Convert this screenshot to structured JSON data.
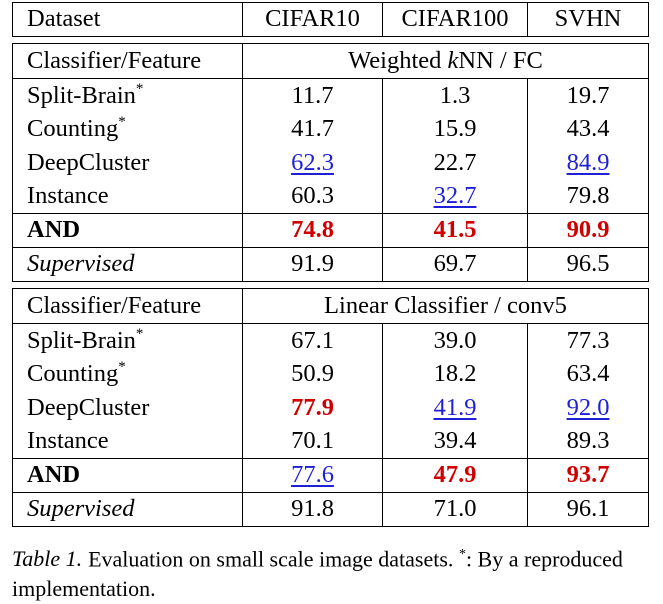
{
  "columns": {
    "dataset": "Dataset",
    "cifar10": "CIFAR10",
    "cifar100": "CIFAR100",
    "svhn": "SVHN"
  },
  "sections": [
    {
      "label": "Classifier/Feature",
      "title_prefix": "Weighted ",
      "title_italic": "k",
      "title_suffix": "NN / FC",
      "rows": [
        {
          "method": "Split-Brain",
          "star": "*",
          "cifar10": "11.7",
          "cifar100": "1.3",
          "svhn": "19.7"
        },
        {
          "method": "Counting",
          "star": "*",
          "cifar10": "41.7",
          "cifar100": "15.9",
          "svhn": "43.4"
        },
        {
          "method": "DeepCluster",
          "cifar10": "62.3",
          "cifar100": "22.7",
          "svhn": "84.9"
        },
        {
          "method": "Instance",
          "cifar10": "60.3",
          "cifar100": "32.7",
          "svhn": "79.8"
        },
        {
          "method": "AND",
          "cifar10": "74.8",
          "cifar100": "41.5",
          "svhn": "90.9"
        },
        {
          "method": "Supervised",
          "cifar10": "91.9",
          "cifar100": "69.7",
          "svhn": "96.5"
        }
      ]
    },
    {
      "label": "Classifier/Feature",
      "title": "Linear Classifier / conv5",
      "rows": [
        {
          "method": "Split-Brain",
          "star": "*",
          "cifar10": "67.1",
          "cifar100": "39.0",
          "svhn": "77.3"
        },
        {
          "method": "Counting",
          "star": "*",
          "cifar10": "50.9",
          "cifar100": "18.2",
          "svhn": "63.4"
        },
        {
          "method": "DeepCluster",
          "cifar10": "77.9",
          "cifar100": "41.9",
          "svhn": "92.0"
        },
        {
          "method": "Instance",
          "cifar10": "70.1",
          "cifar100": "39.4",
          "svhn": "89.3"
        },
        {
          "method": "AND",
          "cifar10": "77.6",
          "cifar100": "47.9",
          "svhn": "93.7"
        },
        {
          "method": "Supervised",
          "cifar10": "91.8",
          "cifar100": "71.0",
          "svhn": "96.1"
        }
      ]
    }
  ],
  "caption": {
    "label": "Table 1.",
    "text_before": "Evaluation on small scale image datasets. ",
    "star": "*",
    "text_after": ": By a reproduced implementation."
  },
  "colors": {
    "best": "#d00000",
    "second_best": "#1f1fd6"
  }
}
